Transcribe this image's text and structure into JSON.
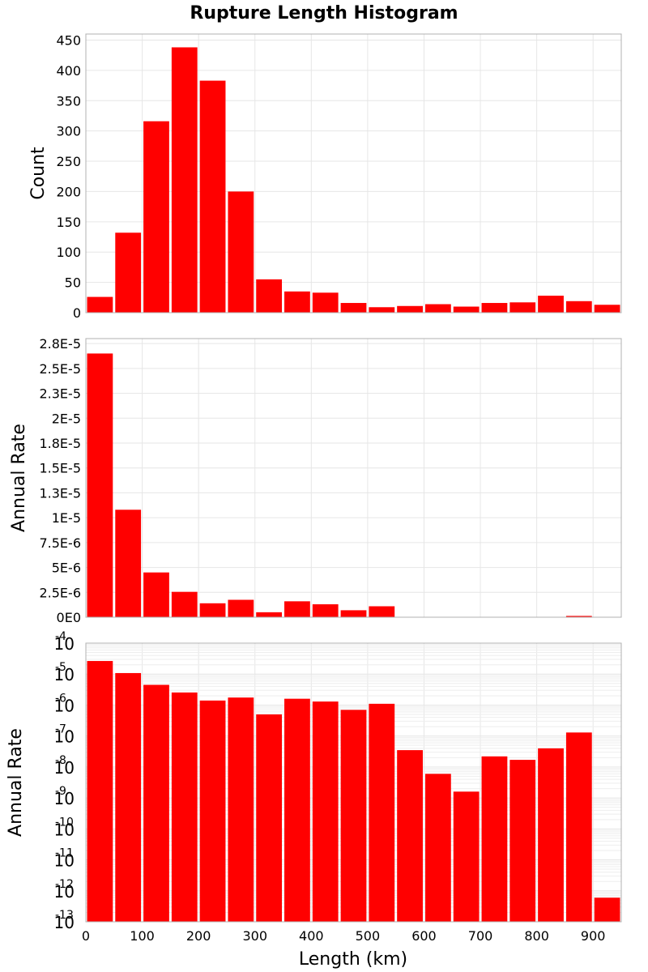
{
  "chart_data": {
    "title": "Rupture Length Histogram",
    "xlabel": "Length (km)",
    "bar_color": "#ff0000",
    "x_bin_starts": [
      0,
      50,
      100,
      150,
      200,
      250,
      300,
      350,
      400,
      450,
      500,
      550,
      600,
      650,
      700,
      750,
      800,
      850,
      900
    ],
    "bin_width": 50,
    "xlim": [
      0,
      950
    ],
    "x_ticks": [
      0,
      100,
      200,
      300,
      400,
      500,
      600,
      700,
      800,
      900
    ],
    "panels": [
      {
        "type": "bar",
        "ylabel": "Count",
        "scale": "linear",
        "ylim": [
          0,
          460
        ],
        "y_ticks": [
          0,
          50,
          100,
          150,
          200,
          250,
          300,
          350,
          400,
          450
        ],
        "y_tick_labels": [
          "0",
          "50",
          "100",
          "150",
          "200",
          "250",
          "300",
          "350",
          "400",
          "450"
        ],
        "values": [
          26,
          132,
          316,
          438,
          383,
          200,
          55,
          35,
          33,
          16,
          9,
          11,
          14,
          10,
          16,
          17,
          28,
          19,
          13
        ]
      },
      {
        "type": "bar",
        "ylabel": "Annual Rate",
        "scale": "linear",
        "ylim": [
          0,
          2.8e-05
        ],
        "y_ticks": [
          0,
          2.5e-06,
          5e-06,
          7.5e-06,
          1e-05,
          1.25e-05,
          1.5e-05,
          1.75e-05,
          2e-05,
          2.25e-05,
          2.5e-05,
          2.75e-05
        ],
        "y_tick_labels": [
          "0E0",
          "2.5E-6",
          "5E-6",
          "7.5E-6",
          "1E-5",
          "1.3E-5",
          "1.5E-5",
          "1.8E-5",
          "2E-5",
          "2.3E-5",
          "2.5E-5",
          "2.8E-5"
        ],
        "values": [
          2.65e-05,
          1.08e-05,
          4.5e-06,
          2.55e-06,
          1.4e-06,
          1.75e-06,
          5e-07,
          1.6e-06,
          1.3e-06,
          7e-07,
          1.1e-06,
          3.5e-08,
          6e-09,
          1.6e-09,
          2.2e-08,
          1.7e-08,
          4e-08,
          1.3e-07,
          6e-13
        ]
      },
      {
        "type": "bar",
        "ylabel": "Annual Rate",
        "scale": "log",
        "ylim_exp": [
          -13,
          -4
        ],
        "y_tick_exps": [
          -13,
          -12,
          -11,
          -10,
          -9,
          -8,
          -7,
          -6,
          -5,
          -4
        ],
        "y_tick_base": "10",
        "y_tick_exp_labels": [
          "-13",
          "-12",
          "-11",
          "-10",
          "-9",
          "-8",
          "-7",
          "-6",
          "-5",
          "-4"
        ],
        "values": [
          2.65e-05,
          1.08e-05,
          4.5e-06,
          2.55e-06,
          1.4e-06,
          1.75e-06,
          5e-07,
          1.6e-06,
          1.3e-06,
          7e-07,
          1.1e-06,
          3.5e-08,
          6e-09,
          1.6e-09,
          2.2e-08,
          1.7e-08,
          4e-08,
          1.3e-07,
          6e-13
        ]
      }
    ]
  }
}
